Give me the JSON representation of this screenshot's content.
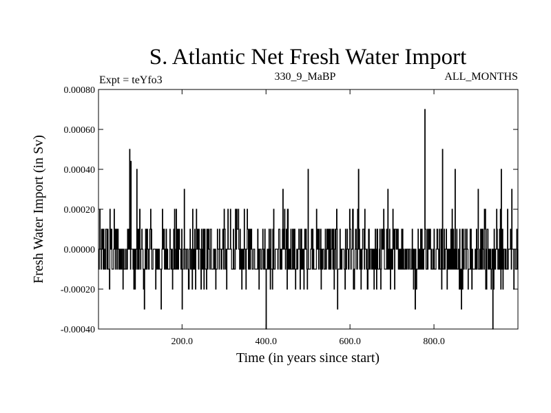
{
  "chart_data": {
    "type": "line",
    "title": "S. Atlantic Net Fresh Water Import",
    "subtitle_left": "Expt = teYfo3",
    "subtitle_center": "330_9_MaBP",
    "subtitle_right": "ALL_MONTHS",
    "xlabel": "Time (in years since start)",
    "ylabel": "Fresh Water Import (in Sv)",
    "xlim": [
      1,
      1000
    ],
    "ylim": [
      -0.0004,
      0.0008
    ],
    "xticks": [
      200,
      400,
      600,
      800
    ],
    "xtick_labels": [
      "200.0",
      "400.0",
      "600.0",
      "800.0"
    ],
    "yticks": [
      -0.0004,
      -0.0002,
      0.0,
      0.0002,
      0.0004,
      0.0006,
      0.0008
    ],
    "ytick_labels": [
      "-0.00040",
      "-0.00020",
      "0.00000",
      "0.00020",
      "0.00040",
      "0.00060",
      "0.00080"
    ],
    "grid": false,
    "series": [
      {
        "name": "Net Fresh Water Import",
        "color": "#000000",
        "quantization": 0.0001,
        "baseline_values": [
          -0.0001,
          0.0,
          0.0001
        ],
        "spikes": [
          {
            "x": 75,
            "y": 0.0005
          },
          {
            "x": 78,
            "y": 0.00044
          },
          {
            "x": 92,
            "y": 0.0004
          },
          {
            "x": 28,
            "y": 0.0002
          },
          {
            "x": 205,
            "y": 0.0003
          },
          {
            "x": 315,
            "y": 0.0002
          },
          {
            "x": 440,
            "y": 0.0003
          },
          {
            "x": 500,
            "y": 0.0004
          },
          {
            "x": 570,
            "y": 0.0003
          },
          {
            "x": 620,
            "y": 0.0004
          },
          {
            "x": 690,
            "y": 0.0003
          },
          {
            "x": 778,
            "y": 0.0007
          },
          {
            "x": 820,
            "y": 0.0005
          },
          {
            "x": 850,
            "y": 0.0004
          },
          {
            "x": 905,
            "y": 0.0003
          },
          {
            "x": 960,
            "y": 0.0004
          },
          {
            "x": 985,
            "y": 0.0003
          },
          {
            "x": 400,
            "y": -0.0004
          },
          {
            "x": 940,
            "y": -0.0004
          },
          {
            "x": 110,
            "y": -0.0003
          },
          {
            "x": 200,
            "y": -0.0003
          },
          {
            "x": 570,
            "y": -0.0003
          },
          {
            "x": 755,
            "y": -0.0003
          },
          {
            "x": 865,
            "y": -0.0003
          },
          {
            "x": 150,
            "y": -0.0003
          }
        ]
      }
    ]
  }
}
